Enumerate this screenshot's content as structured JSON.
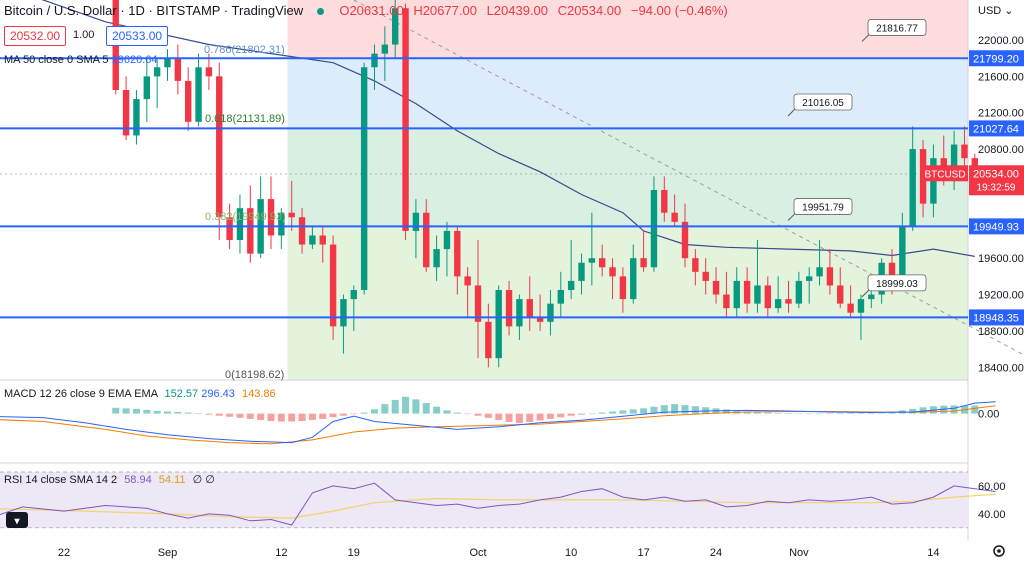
{
  "header": {
    "title": "Bitcoin / U.S. Dollar · 1D · BITSTAMP · TradingView",
    "open": "O20631.00",
    "high": "H20677.00",
    "low": "L20439.00",
    "close": "C20534.00",
    "change": "−94.00 (−0.46%)"
  },
  "trade": {
    "sell": "20532.00",
    "qty": "1.00",
    "buy": "20533.00"
  },
  "currency": "USD",
  "ma_legend": {
    "label": "MA 50 close 0 SMA 5",
    "value": "19620.64"
  },
  "macd_legend": {
    "label": "MACD 12 26 close 9 EMA EMA",
    "hist": "152.57",
    "macd": "296.43",
    "signal": "143.86"
  },
  "rsi_legend": {
    "label": "RSI 14 close SMA 14 2",
    "rsi": "58.94",
    "sma": "54.11",
    "extra": "∅ ∅"
  },
  "fib_labels": [
    "0.786(21802.31)",
    "0.618(21131.89)",
    "0.382(19949.93)",
    "0(18198.62)"
  ],
  "colors": {
    "up": "#089981",
    "down": "#f23645",
    "level": "#2962ff",
    "ma": "#3b4a8a",
    "macd": "#2962ff",
    "signal": "#f57c00",
    "rsi": "#7e57c2",
    "rsi_sma": "#f2d46a"
  },
  "chart_data": {
    "type": "candlestick",
    "price_ticks": [
      22000,
      21600,
      21200,
      20800,
      20400,
      19600,
      19200,
      18800,
      18400
    ],
    "ylim": [
      18260,
      22440
    ],
    "x_ticks": [
      {
        "label": "22",
        "day": 0
      },
      {
        "label": "Sep",
        "day": 10
      },
      {
        "label": "12",
        "day": 21
      },
      {
        "label": "19",
        "day": 28
      },
      {
        "label": "Oct",
        "day": 40
      },
      {
        "label": "10",
        "day": 49
      },
      {
        "label": "17",
        "day": 56
      },
      {
        "label": "24",
        "day": 63
      },
      {
        "label": "Nov",
        "day": 71
      },
      {
        "label": "14",
        "day": 84
      }
    ],
    "candles": [
      [
        24000,
        24200,
        21400,
        21450
      ],
      [
        21450,
        21600,
        20900,
        20950
      ],
      [
        20950,
        21450,
        20850,
        21350
      ],
      [
        21350,
        21800,
        21100,
        21600
      ],
      [
        21600,
        21800,
        21250,
        21700
      ],
      [
        21700,
        21900,
        21550,
        21800
      ],
      [
        21800,
        21950,
        21400,
        21550
      ],
      [
        21550,
        21700,
        21000,
        21100
      ],
      [
        21100,
        21850,
        21050,
        21700
      ],
      [
        21700,
        21850,
        21450,
        21600
      ],
      [
        21600,
        21750,
        19800,
        20050
      ],
      [
        20050,
        20200,
        19700,
        19800
      ],
      [
        19800,
        20300,
        19650,
        20150
      ],
      [
        20150,
        20400,
        19550,
        19650
      ],
      [
        19650,
        20500,
        19600,
        20250
      ],
      [
        20250,
        20500,
        19700,
        19850
      ],
      [
        19850,
        20150,
        19700,
        20100
      ],
      [
        20100,
        20450,
        19900,
        20050
      ],
      [
        20050,
        20150,
        19650,
        19750
      ],
      [
        19750,
        19950,
        19700,
        19850
      ],
      [
        19850,
        19950,
        19550,
        19750
      ],
      [
        19750,
        19850,
        18700,
        18850
      ],
      [
        18850,
        19200,
        18550,
        19150
      ],
      [
        19150,
        19300,
        18800,
        19250
      ],
      [
        19250,
        21750,
        19200,
        21700
      ],
      [
        21700,
        21950,
        21450,
        21850
      ],
      [
        21850,
        22150,
        21550,
        21950
      ],
      [
        21950,
        22450,
        21800,
        22350
      ],
      [
        22350,
        22400,
        19800,
        19900
      ],
      [
        19900,
        20250,
        19600,
        20100
      ],
      [
        20100,
        20250,
        19450,
        19500
      ],
      [
        19500,
        19850,
        19350,
        19700
      ],
      [
        19700,
        20000,
        19400,
        19900
      ],
      [
        19900,
        19950,
        19200,
        19400
      ],
      [
        19400,
        19500,
        18950,
        19300
      ],
      [
        19300,
        19800,
        18500,
        18900
      ],
      [
        18900,
        19100,
        18400,
        18500
      ],
      [
        18500,
        19300,
        18400,
        19250
      ],
      [
        19250,
        19350,
        18750,
        18850
      ],
      [
        18850,
        19200,
        18700,
        19150
      ],
      [
        19150,
        19400,
        18800,
        18950
      ],
      [
        18950,
        19200,
        18800,
        18900
      ],
      [
        18900,
        19250,
        18750,
        19100
      ],
      [
        19100,
        19450,
        18950,
        19250
      ],
      [
        19250,
        19800,
        19150,
        19350
      ],
      [
        19350,
        19650,
        19200,
        19550
      ],
      [
        19550,
        20100,
        19300,
        19600
      ],
      [
        19600,
        19750,
        19400,
        19500
      ],
      [
        19500,
        19600,
        19150,
        19400
      ],
      [
        19400,
        19500,
        19000,
        19150
      ],
      [
        19150,
        19750,
        19100,
        19600
      ],
      [
        19600,
        19900,
        19450,
        19500
      ],
      [
        19500,
        20500,
        19450,
        20350
      ],
      [
        20350,
        20500,
        20000,
        20100
      ],
      [
        20100,
        20300,
        19950,
        20000
      ],
      [
        20000,
        20200,
        19500,
        19600
      ],
      [
        19600,
        19700,
        19300,
        19450
      ],
      [
        19450,
        19600,
        19200,
        19350
      ],
      [
        19350,
        19500,
        19100,
        19200
      ],
      [
        19200,
        19450,
        18950,
        19050
      ],
      [
        19050,
        19500,
        18950,
        19350
      ],
      [
        19350,
        19500,
        19000,
        19100
      ],
      [
        19100,
        19800,
        19000,
        19300
      ],
      [
        19300,
        19400,
        18950,
        19050
      ],
      [
        19050,
        19400,
        19000,
        19150
      ],
      [
        19150,
        19350,
        19000,
        19100
      ],
      [
        19100,
        19450,
        19050,
        19350
      ],
      [
        19350,
        19500,
        19100,
        19400
      ],
      [
        19400,
        19800,
        19300,
        19500
      ],
      [
        19500,
        19700,
        19200,
        19300
      ],
      [
        19300,
        19500,
        19050,
        19100
      ],
      [
        19100,
        19300,
        18950,
        19000
      ],
      [
        19000,
        19200,
        18700,
        19150
      ],
      [
        19150,
        19300,
        19050,
        19200
      ],
      [
        19200,
        19600,
        19100,
        19550
      ],
      [
        19550,
        19700,
        19200,
        19350
      ],
      [
        19350,
        20100,
        19250,
        19950
      ],
      [
        19950,
        21050,
        19900,
        20800
      ],
      [
        20800,
        20900,
        20050,
        20200
      ],
      [
        20200,
        20850,
        20050,
        20700
      ],
      [
        20700,
        20950,
        20400,
        20500
      ],
      [
        20500,
        21000,
        20350,
        20850
      ],
      [
        20850,
        21050,
        20600,
        20700
      ],
      [
        20700,
        20750,
        20450,
        20534
      ]
    ],
    "levels": [
      {
        "price": 21799.2,
        "label": "21799.20",
        "callout": "21816.77"
      },
      {
        "price": 21027.64,
        "label": "21027.64",
        "callout": "21016.05"
      },
      {
        "price": 19949.93,
        "label": "19949.93",
        "callout": "19951.79"
      },
      {
        "price": 18948.35,
        "label": "18948.35",
        "callout": "18999.03"
      }
    ],
    "last_price": {
      "label": "BTCUSD",
      "price": "20534.00",
      "timer": "19:32:59",
      "value": 20534
    },
    "ma50": [
      [
        -6,
        22600
      ],
      [
        4,
        22200
      ],
      [
        8,
        22100
      ],
      [
        14,
        21950
      ],
      [
        20,
        21850
      ],
      [
        26,
        21750
      ],
      [
        30,
        21550
      ],
      [
        34,
        21300
      ],
      [
        38,
        21000
      ],
      [
        42,
        20750
      ],
      [
        46,
        20550
      ],
      [
        50,
        20300
      ],
      [
        54,
        20100
      ],
      [
        56,
        19900
      ],
      [
        60,
        19750
      ],
      [
        64,
        19720
      ],
      [
        70,
        19700
      ],
      [
        76,
        19680
      ],
      [
        80,
        19630
      ],
      [
        84,
        19700
      ],
      [
        88,
        19620
      ]
    ],
    "trend_line": [
      [
        28,
        22440
      ],
      [
        95,
        18400
      ]
    ],
    "macd": {
      "ticks": [
        0
      ],
      "ylim": [
        -1800,
        1200
      ],
      "macd_line": [
        [
          -8,
          -100
        ],
        [
          -2,
          -150
        ],
        [
          2,
          -350
        ],
        [
          6,
          -600
        ],
        [
          10,
          -800
        ],
        [
          14,
          -950
        ],
        [
          18,
          -1050
        ],
        [
          22,
          -1100
        ],
        [
          24,
          -900
        ],
        [
          26,
          -300
        ],
        [
          28,
          -100
        ],
        [
          30,
          -300
        ],
        [
          34,
          -450
        ],
        [
          38,
          -600
        ],
        [
          42,
          -500
        ],
        [
          46,
          -350
        ],
        [
          50,
          -250
        ],
        [
          54,
          -100
        ],
        [
          58,
          50
        ],
        [
          62,
          100
        ],
        [
          66,
          120
        ],
        [
          70,
          100
        ],
        [
          74,
          60
        ],
        [
          78,
          40
        ],
        [
          82,
          60
        ],
        [
          86,
          200
        ],
        [
          88,
          400
        ],
        [
          90,
          450
        ]
      ],
      "signal_line": [
        [
          -8,
          -200
        ],
        [
          -2,
          -300
        ],
        [
          4,
          -600
        ],
        [
          8,
          -850
        ],
        [
          12,
          -1000
        ],
        [
          16,
          -1100
        ],
        [
          20,
          -1150
        ],
        [
          24,
          -1000
        ],
        [
          28,
          -700
        ],
        [
          32,
          -550
        ],
        [
          36,
          -500
        ],
        [
          40,
          -460
        ],
        [
          46,
          -400
        ],
        [
          50,
          -300
        ],
        [
          54,
          -200
        ],
        [
          58,
          -80
        ],
        [
          62,
          0
        ],
        [
          66,
          60
        ],
        [
          70,
          80
        ],
        [
          74,
          80
        ],
        [
          78,
          60
        ],
        [
          82,
          50
        ],
        [
          86,
          100
        ],
        [
          90,
          300
        ]
      ],
      "histogram": [
        110,
        100,
        90,
        70,
        50,
        40,
        30,
        20,
        10,
        -20,
        -40,
        -60,
        -80,
        -100,
        -120,
        -140,
        -150,
        -150,
        -140,
        -120,
        -100,
        -70,
        -40,
        -10,
        20,
        80,
        180,
        260,
        320,
        270,
        200,
        130,
        60,
        20,
        -10,
        -40,
        -80,
        -120,
        -160,
        -180,
        -160,
        -130,
        -100,
        -70,
        -40,
        -20,
        0,
        20,
        40,
        60,
        80,
        100,
        130,
        160,
        180,
        160,
        140,
        120,
        100,
        80,
        60,
        40,
        30,
        20,
        10,
        5,
        0,
        -5,
        0,
        5,
        10,
        15,
        10,
        5,
        10,
        20,
        60,
        90,
        120,
        140,
        150,
        155,
        150,
        153
      ]
    },
    "rsi": {
      "ticks": [
        60,
        40
      ],
      "ylim": [
        22,
        75
      ],
      "band": [
        30,
        70
      ],
      "rsi_line": [
        [
          -8,
          35
        ],
        [
          -4,
          45
        ],
        [
          0,
          42
        ],
        [
          4,
          46
        ],
        [
          8,
          44
        ],
        [
          10,
          40
        ],
        [
          12,
          37
        ],
        [
          14,
          40
        ],
        [
          16,
          39
        ],
        [
          18,
          35
        ],
        [
          20,
          36
        ],
        [
          22,
          32
        ],
        [
          24,
          55
        ],
        [
          26,
          60
        ],
        [
          28,
          58
        ],
        [
          30,
          62
        ],
        [
          32,
          50
        ],
        [
          34,
          48
        ],
        [
          36,
          46
        ],
        [
          38,
          47
        ],
        [
          40,
          44
        ],
        [
          42,
          46
        ],
        [
          44,
          47
        ],
        [
          46,
          50
        ],
        [
          48,
          52
        ],
        [
          50,
          56
        ],
        [
          52,
          58
        ],
        [
          54,
          52
        ],
        [
          56,
          50
        ],
        [
          58,
          52
        ],
        [
          60,
          49
        ],
        [
          62,
          50
        ],
        [
          64,
          45
        ],
        [
          66,
          46
        ],
        [
          68,
          49
        ],
        [
          70,
          48
        ],
        [
          72,
          50
        ],
        [
          74,
          49
        ],
        [
          76,
          50
        ],
        [
          78,
          52
        ],
        [
          80,
          47
        ],
        [
          82,
          48
        ],
        [
          84,
          52
        ],
        [
          86,
          60
        ],
        [
          88,
          58
        ],
        [
          90,
          56
        ]
      ],
      "sma_line": [
        [
          -8,
          44
        ],
        [
          2,
          42
        ],
        [
          10,
          40
        ],
        [
          16,
          38
        ],
        [
          22,
          37
        ],
        [
          26,
          42
        ],
        [
          30,
          48
        ],
        [
          36,
          51
        ],
        [
          42,
          50
        ],
        [
          48,
          50
        ],
        [
          54,
          50
        ],
        [
          60,
          49
        ],
        [
          66,
          48
        ],
        [
          72,
          48
        ],
        [
          78,
          48
        ],
        [
          82,
          49
        ],
        [
          86,
          52
        ],
        [
          90,
          54
        ]
      ]
    }
  }
}
